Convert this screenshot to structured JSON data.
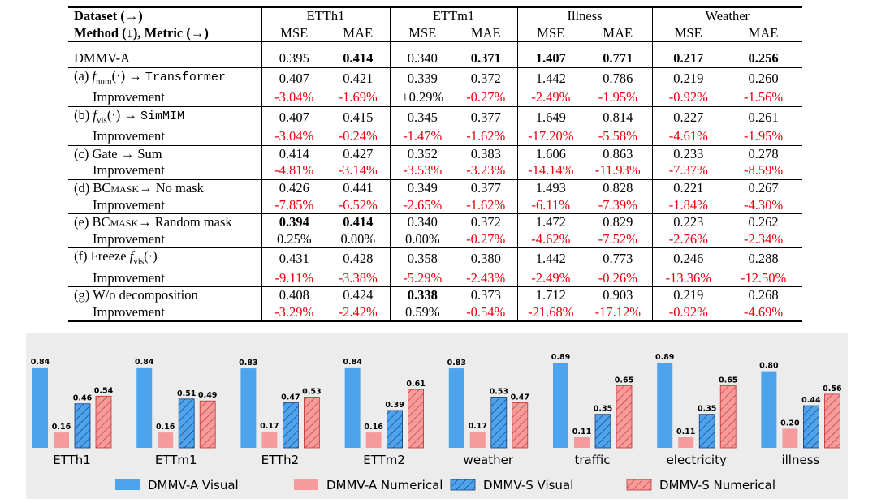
{
  "table": {
    "header": {
      "dataset_label": "Dataset (→)",
      "method_label": "Method (↓),",
      "metric_label": "Metric (→)",
      "datasets": [
        "ETTh1",
        "ETTm1",
        "Illness",
        "Weather"
      ],
      "metrics": [
        "MSE",
        "MAE",
        "MSE",
        "MAE",
        "MSE",
        "MAE",
        "MSE",
        "MAE"
      ]
    },
    "baseline": {
      "label": "DMMV-A",
      "values": [
        "0.395",
        "0.414",
        "0.340",
        "0.371",
        "1.407",
        "0.771",
        "0.217",
        "0.256"
      ]
    },
    "improvement_label": "Improvement",
    "groups": [
      {
        "tag": "(a)",
        "text1": "f",
        "sub": "num",
        "text2": "(·) →",
        "mono": "Transformer",
        "values": [
          "0.407",
          "0.421",
          "0.339",
          "0.372",
          "1.442",
          "0.786",
          "0.219",
          "0.260"
        ],
        "improvements": [
          "-3.04%",
          "-1.69%",
          "+0.29%",
          "-0.27%",
          "-2.49%",
          "-1.95%",
          "-0.92%",
          "-1.56%"
        ]
      },
      {
        "tag": "(b)",
        "text1": "f",
        "sub": "vis",
        "text2": "(·) →",
        "mono": "SimMIM",
        "values": [
          "0.407",
          "0.415",
          "0.345",
          "0.377",
          "1.649",
          "0.814",
          "0.227",
          "0.261"
        ],
        "improvements": [
          "-3.04%",
          "-0.24%",
          "-1.47%",
          "-1.62%",
          "-17.20%",
          "-5.58%",
          "-4.61%",
          "-1.95%"
        ]
      },
      {
        "label": "(c) Gate → Sum",
        "values": [
          "0.414",
          "0.427",
          "0.352",
          "0.383",
          "1.606",
          "0.863",
          "0.233",
          "0.278"
        ],
        "improvements": [
          "-4.81%",
          "-3.14%",
          "-3.53%",
          "-3.23%",
          "-14.14%",
          "-11.93%",
          "-7.37%",
          "-8.59%"
        ]
      },
      {
        "label": "(d) BCmask→ No mask",
        "values": [
          "0.426",
          "0.441",
          "0.349",
          "0.377",
          "1.493",
          "0.828",
          "0.221",
          "0.267"
        ],
        "improvements": [
          "-7.85%",
          "-6.52%",
          "-2.65%",
          "-1.62%",
          "-6.11%",
          "-7.39%",
          "-1.84%",
          "-4.30%"
        ]
      },
      {
        "label": "(e) BCmask→ Random mask",
        "values": [
          "0.394",
          "0.414",
          "0.340",
          "0.372",
          "1.472",
          "0.829",
          "0.223",
          "0.262"
        ],
        "improvements": [
          "0.25%",
          "0.00%",
          "0.00%",
          "-0.27%",
          "-4.62%",
          "-7.52%",
          "-2.76%",
          "-2.34%"
        ]
      },
      {
        "tag": "(f)",
        "text0": "Freeze",
        "text1": "f",
        "sub": "vis",
        "text2": "(·)",
        "values": [
          "0.431",
          "0.428",
          "0.358",
          "0.380",
          "1.442",
          "0.773",
          "0.246",
          "0.288"
        ],
        "improvements": [
          "-9.11%",
          "-3.38%",
          "-5.29%",
          "-2.43%",
          "-2.49%",
          "-0.26%",
          "-13.36%",
          "-12.50%"
        ]
      },
      {
        "label": "(g) W/o decomposition",
        "values": [
          "0.408",
          "0.424",
          "0.338",
          "0.373",
          "1.712",
          "0.903",
          "0.219",
          "0.268"
        ],
        "improvements": [
          "-3.29%",
          "-2.42%",
          "0.59%",
          "-0.54%",
          "-21.68%",
          "-17.12%",
          "-0.92%",
          "-4.69%"
        ]
      }
    ],
    "bold_cells": [
      [
        0,
        1
      ],
      [
        0,
        3
      ],
      [
        0,
        4
      ],
      [
        0,
        5
      ],
      [
        0,
        6
      ],
      [
        0,
        7
      ],
      [
        5,
        0
      ],
      [
        5,
        1
      ],
      [
        7,
        2
      ]
    ]
  },
  "chart_data": {
    "type": "bar",
    "categories": [
      "ETTh1",
      "ETTm1",
      "ETTh2",
      "ETTm2",
      "weather",
      "traffic",
      "electricity",
      "illness"
    ],
    "series": [
      {
        "name": "DMMV-A Visual",
        "values": [
          0.84,
          0.84,
          0.83,
          0.84,
          0.83,
          0.89,
          0.89,
          0.8
        ],
        "labels": [
          "0.84",
          "0.84",
          "0.83",
          "0.84",
          "0.83",
          "0.89",
          "0.89",
          "0.80"
        ],
        "color": "#4da3ec",
        "hatch": false
      },
      {
        "name": "DMMV-A Numerical",
        "values": [
          0.16,
          0.16,
          0.17,
          0.16,
          0.17,
          0.11,
          0.11,
          0.2
        ],
        "labels": [
          "0.16",
          "0.16",
          "0.17",
          "0.16",
          "0.17",
          "0.11",
          "0.11",
          "0.20"
        ],
        "color": "#f59b9b",
        "hatch": false
      },
      {
        "name": "DMMV-S Visual",
        "values": [
          0.46,
          0.51,
          0.47,
          0.39,
          0.53,
          0.35,
          0.35,
          0.44
        ],
        "labels": [
          "0.46",
          "0.51",
          "0.47",
          "0.39",
          "0.53",
          "0.35",
          "0.35",
          "0.44"
        ],
        "color": "#4da3ec",
        "hatch": true
      },
      {
        "name": "DMMV-S Numerical",
        "values": [
          0.54,
          0.49,
          0.53,
          0.61,
          0.47,
          0.65,
          0.65,
          0.56
        ],
        "labels": [
          "0.54",
          "0.49",
          "0.53",
          "0.61",
          "0.47",
          "0.65",
          "0.65",
          "0.56"
        ],
        "color": "#f59b9b",
        "hatch": true
      }
    ],
    "ylim": [
      0,
      1
    ],
    "grid": false,
    "legend": "bottom",
    "background": "#ececec",
    "hatch_color": "#1a3a78",
    "bold_color": "#e8000b"
  }
}
